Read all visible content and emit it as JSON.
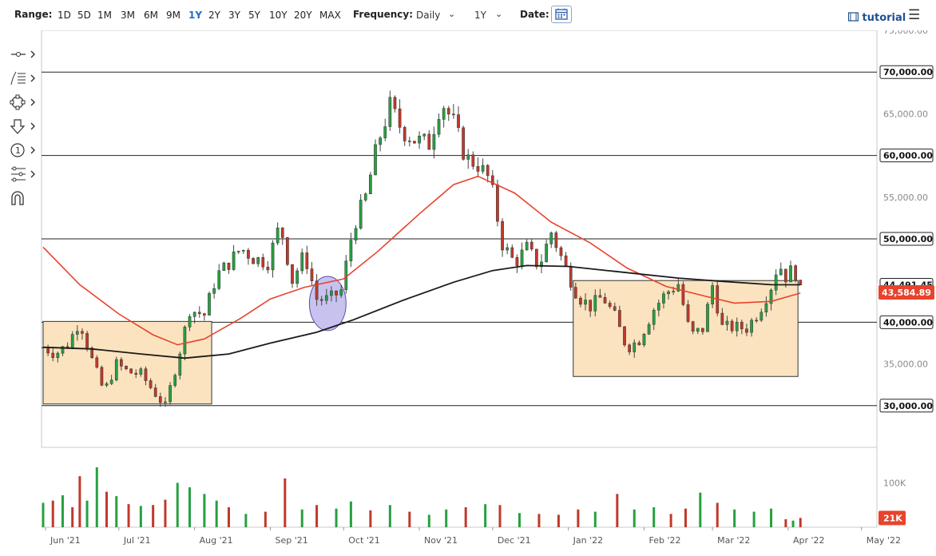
{
  "toolbar": {
    "range_label": "Range:",
    "ranges": [
      "1D",
      "5D",
      "1M",
      "3M",
      "6M",
      "9M",
      "1Y",
      "2Y",
      "3Y",
      "5Y",
      "10Y",
      "20Y",
      "MAX"
    ],
    "active_range": "1Y",
    "frequency_label": "Frequency:",
    "frequency_value": "Daily",
    "period_value": "1Y",
    "date_label": "Date:",
    "tutorial_label": "tutorial"
  },
  "icons": {
    "calendar": "calendar-icon",
    "tutorial": "film-icon",
    "menu": "hamburger-menu-icon",
    "tools": [
      "line-tool-icon",
      "fib-tool-icon",
      "shape-tool-icon",
      "arrow-tool-icon",
      "annotation-tool-icon",
      "pattern-tool-icon",
      "magnet-icon"
    ]
  },
  "colors": {
    "up_candle": "#26a041",
    "down_candle": "#c0392b",
    "ma_fast": "#e8432d",
    "ma_slow": "#1a1a1a",
    "box_fill": "#fbe3bf",
    "circle_fill": "#c8c2ee",
    "price_badge": "#e8432d",
    "volume_badge": "#e8432d"
  },
  "chart_data": {
    "type": "candlestick",
    "y_axis_ticks": [
      "75,000.00",
      "70,000.00",
      "65,000.00",
      "60,000.00",
      "55,000.00",
      "50,000.00",
      "44,491.45",
      "43,584.89",
      "40,000.00",
      "35,000.00",
      "30,000.00"
    ],
    "price_ylim": [
      25000,
      75000
    ],
    "x_axis_ticks": [
      "Jun '21",
      "Jul '21",
      "Aug '21",
      "Sep '21",
      "Oct '21",
      "Nov '21",
      "Dec '21",
      "Jan '22",
      "Feb '22",
      "Mar '22",
      "Apr '22",
      "May '22"
    ],
    "x_range": [
      "2021-05-31",
      "2022-05-06"
    ],
    "horizontal_levels": [
      {
        "value": 70000,
        "label": "70,000.00"
      },
      {
        "value": 60000,
        "label": "60,000.00"
      },
      {
        "value": 50000,
        "label": "50,000.00"
      },
      {
        "value": 40000,
        "label": "40,000.00"
      },
      {
        "value": 30000,
        "label": "30,000.00"
      }
    ],
    "current_price": {
      "value": 43584.89,
      "label": "43,584.89"
    },
    "ma_slow_last": {
      "value": 44491.45,
      "label": "44,491.45"
    },
    "range_boxes": [
      {
        "from": "2021-05-31",
        "to": "2021-08-08",
        "low": 30200,
        "high": 40100
      },
      {
        "from": "2022-01-03",
        "to": "2022-04-05",
        "low": 33500,
        "high": 45000
      }
    ],
    "highlight_circle": {
      "from": "2021-09-17",
      "to": "2021-10-02",
      "low": 39000,
      "high": 45500
    },
    "price_series": [
      {
        "date": "2021-05-31",
        "close": 37000
      },
      {
        "date": "2021-06-05",
        "close": 36200
      },
      {
        "date": "2021-06-10",
        "close": 37300
      },
      {
        "date": "2021-06-15",
        "close": 40200
      },
      {
        "date": "2021-06-20",
        "close": 35500
      },
      {
        "date": "2021-06-25",
        "close": 31600
      },
      {
        "date": "2021-06-30",
        "close": 35000
      },
      {
        "date": "2021-07-05",
        "close": 34000
      },
      {
        "date": "2021-07-10",
        "close": 33800
      },
      {
        "date": "2021-07-15",
        "close": 31800
      },
      {
        "date": "2021-07-20",
        "close": 29900
      },
      {
        "date": "2021-07-25",
        "close": 35400
      },
      {
        "date": "2021-07-30",
        "close": 41500
      },
      {
        "date": "2021-08-05",
        "close": 40900
      },
      {
        "date": "2021-08-10",
        "close": 45600
      },
      {
        "date": "2021-08-15",
        "close": 47100
      },
      {
        "date": "2021-08-20",
        "close": 48900
      },
      {
        "date": "2021-08-25",
        "close": 47700
      },
      {
        "date": "2021-08-31",
        "close": 47200
      },
      {
        "date": "2021-09-05",
        "close": 51800
      },
      {
        "date": "2021-09-10",
        "close": 45000
      },
      {
        "date": "2021-09-15",
        "close": 48200
      },
      {
        "date": "2021-09-20",
        "close": 42800
      },
      {
        "date": "2021-09-25",
        "close": 42700
      },
      {
        "date": "2021-09-30",
        "close": 43800
      },
      {
        "date": "2021-10-05",
        "close": 51500
      },
      {
        "date": "2021-10-10",
        "close": 55000
      },
      {
        "date": "2021-10-15",
        "close": 61500
      },
      {
        "date": "2021-10-20",
        "close": 65900
      },
      {
        "date": "2021-10-25",
        "close": 63000
      },
      {
        "date": "2021-10-30",
        "close": 61900
      },
      {
        "date": "2021-11-05",
        "close": 61400
      },
      {
        "date": "2021-11-10",
        "close": 66600
      },
      {
        "date": "2021-11-15",
        "close": 63900
      },
      {
        "date": "2021-11-20",
        "close": 59700
      },
      {
        "date": "2021-11-25",
        "close": 58900
      },
      {
        "date": "2021-11-30",
        "close": 57000
      },
      {
        "date": "2021-12-05",
        "close": 49400
      },
      {
        "date": "2021-12-10",
        "close": 47100
      },
      {
        "date": "2021-12-15",
        "close": 48900
      },
      {
        "date": "2021-12-20",
        "close": 46700
      },
      {
        "date": "2021-12-25",
        "close": 50800
      },
      {
        "date": "2021-12-30",
        "close": 47100
      },
      {
        "date": "2022-01-05",
        "close": 43100
      },
      {
        "date": "2022-01-10",
        "close": 41900
      },
      {
        "date": "2022-01-15",
        "close": 43100
      },
      {
        "date": "2022-01-20",
        "close": 40700
      },
      {
        "date": "2022-01-25",
        "close": 36900
      },
      {
        "date": "2022-01-30",
        "close": 37900
      },
      {
        "date": "2022-02-05",
        "close": 41600
      },
      {
        "date": "2022-02-10",
        "close": 43500
      },
      {
        "date": "2022-02-15",
        "close": 44600
      },
      {
        "date": "2022-02-20",
        "close": 38400
      },
      {
        "date": "2022-02-25",
        "close": 39200
      },
      {
        "date": "2022-03-01",
        "close": 44400
      },
      {
        "date": "2022-03-05",
        "close": 39400
      },
      {
        "date": "2022-03-10",
        "close": 39400
      },
      {
        "date": "2022-03-15",
        "close": 39300
      },
      {
        "date": "2022-03-20",
        "close": 41300
      },
      {
        "date": "2022-03-25",
        "close": 44300
      },
      {
        "date": "2022-03-28",
        "close": 47100
      },
      {
        "date": "2022-03-31",
        "close": 45500
      },
      {
        "date": "2022-04-03",
        "close": 46400
      },
      {
        "date": "2022-04-05",
        "close": 45500
      },
      {
        "date": "2022-04-06",
        "close": 43600
      }
    ],
    "ma_fast_series": [
      {
        "date": "2021-05-31",
        "value": 49000
      },
      {
        "date": "2021-06-15",
        "value": 44500
      },
      {
        "date": "2021-07-01",
        "value": 41000
      },
      {
        "date": "2021-07-15",
        "value": 38500
      },
      {
        "date": "2021-07-25",
        "value": 37300
      },
      {
        "date": "2021-08-05",
        "value": 38000
      },
      {
        "date": "2021-08-20",
        "value": 40500
      },
      {
        "date": "2021-09-01",
        "value": 42800
      },
      {
        "date": "2021-09-15",
        "value": 44200
      },
      {
        "date": "2021-10-01",
        "value": 45200
      },
      {
        "date": "2021-10-15",
        "value": 48500
      },
      {
        "date": "2021-11-01",
        "value": 53000
      },
      {
        "date": "2021-11-15",
        "value": 56500
      },
      {
        "date": "2021-11-25",
        "value": 57500
      },
      {
        "date": "2021-12-10",
        "value": 55500
      },
      {
        "date": "2021-12-25",
        "value": 52000
      },
      {
        "date": "2022-01-10",
        "value": 49500
      },
      {
        "date": "2022-01-25",
        "value": 46500
      },
      {
        "date": "2022-02-10",
        "value": 44300
      },
      {
        "date": "2022-02-25",
        "value": 43200
      },
      {
        "date": "2022-03-10",
        "value": 42300
      },
      {
        "date": "2022-03-25",
        "value": 42500
      },
      {
        "date": "2022-04-06",
        "value": 43500
      }
    ],
    "ma_slow_series": [
      {
        "date": "2021-05-31",
        "value": 37000
      },
      {
        "date": "2021-06-20",
        "value": 36800
      },
      {
        "date": "2021-07-10",
        "value": 36200
      },
      {
        "date": "2021-07-28",
        "value": 35700
      },
      {
        "date": "2021-08-15",
        "value": 36200
      },
      {
        "date": "2021-09-01",
        "value": 37500
      },
      {
        "date": "2021-09-20",
        "value": 38800
      },
      {
        "date": "2021-10-05",
        "value": 40300
      },
      {
        "date": "2021-10-25",
        "value": 42600
      },
      {
        "date": "2021-11-15",
        "value": 44800
      },
      {
        "date": "2021-12-01",
        "value": 46200
      },
      {
        "date": "2021-12-15",
        "value": 46800
      },
      {
        "date": "2022-01-01",
        "value": 46700
      },
      {
        "date": "2022-01-20",
        "value": 46100
      },
      {
        "date": "2022-02-15",
        "value": 45300
      },
      {
        "date": "2022-03-05",
        "value": 44900
      },
      {
        "date": "2022-03-25",
        "value": 44500
      },
      {
        "date": "2022-04-06",
        "value": 44491.45
      }
    ],
    "volume": {
      "axis_ticks": [
        "100K"
      ],
      "last_label": "21K",
      "ylim": [
        0,
        180000
      ],
      "bars": [
        {
          "date": "2021-05-31",
          "value": 55000,
          "dir": "up"
        },
        {
          "date": "2021-06-04",
          "value": 60000,
          "dir": "down"
        },
        {
          "date": "2021-06-08",
          "value": 72000,
          "dir": "up"
        },
        {
          "date": "2021-06-12",
          "value": 45000,
          "dir": "down"
        },
        {
          "date": "2021-06-15",
          "value": 115000,
          "dir": "down"
        },
        {
          "date": "2021-06-18",
          "value": 60000,
          "dir": "up"
        },
        {
          "date": "2021-06-22",
          "value": 135000,
          "dir": "up"
        },
        {
          "date": "2021-06-26",
          "value": 80000,
          "dir": "down"
        },
        {
          "date": "2021-06-30",
          "value": 70000,
          "dir": "up"
        },
        {
          "date": "2021-07-05",
          "value": 52000,
          "dir": "down"
        },
        {
          "date": "2021-07-10",
          "value": 48000,
          "dir": "up"
        },
        {
          "date": "2021-07-15",
          "value": 50000,
          "dir": "down"
        },
        {
          "date": "2021-07-20",
          "value": 62000,
          "dir": "down"
        },
        {
          "date": "2021-07-25",
          "value": 100000,
          "dir": "up"
        },
        {
          "date": "2021-07-30",
          "value": 90000,
          "dir": "up"
        },
        {
          "date": "2021-08-05",
          "value": 75000,
          "dir": "up"
        },
        {
          "date": "2021-08-10",
          "value": 60000,
          "dir": "up"
        },
        {
          "date": "2021-08-15",
          "value": 45000,
          "dir": "down"
        },
        {
          "date": "2021-08-22",
          "value": 30000,
          "dir": "up"
        },
        {
          "date": "2021-08-30",
          "value": 35000,
          "dir": "down"
        },
        {
          "date": "2021-09-07",
          "value": 110000,
          "dir": "down"
        },
        {
          "date": "2021-09-14",
          "value": 40000,
          "dir": "up"
        },
        {
          "date": "2021-09-20",
          "value": 50000,
          "dir": "down"
        },
        {
          "date": "2021-09-28",
          "value": 42000,
          "dir": "up"
        },
        {
          "date": "2021-10-04",
          "value": 58000,
          "dir": "up"
        },
        {
          "date": "2021-10-12",
          "value": 38000,
          "dir": "down"
        },
        {
          "date": "2021-10-20",
          "value": 50000,
          "dir": "up"
        },
        {
          "date": "2021-10-28",
          "value": 35000,
          "dir": "down"
        },
        {
          "date": "2021-11-05",
          "value": 28000,
          "dir": "up"
        },
        {
          "date": "2021-11-12",
          "value": 40000,
          "dir": "up"
        },
        {
          "date": "2021-11-20",
          "value": 45000,
          "dir": "down"
        },
        {
          "date": "2021-11-28",
          "value": 52000,
          "dir": "up"
        },
        {
          "date": "2021-12-04",
          "value": 50000,
          "dir": "down"
        },
        {
          "date": "2021-12-12",
          "value": 32000,
          "dir": "up"
        },
        {
          "date": "2021-12-20",
          "value": 30000,
          "dir": "down"
        },
        {
          "date": "2021-12-28",
          "value": 28000,
          "dir": "down"
        },
        {
          "date": "2022-01-05",
          "value": 40000,
          "dir": "down"
        },
        {
          "date": "2022-01-12",
          "value": 35000,
          "dir": "up"
        },
        {
          "date": "2022-01-21",
          "value": 75000,
          "dir": "down"
        },
        {
          "date": "2022-01-28",
          "value": 40000,
          "dir": "up"
        },
        {
          "date": "2022-02-05",
          "value": 45000,
          "dir": "up"
        },
        {
          "date": "2022-02-12",
          "value": 30000,
          "dir": "down"
        },
        {
          "date": "2022-02-18",
          "value": 42000,
          "dir": "down"
        },
        {
          "date": "2022-02-24",
          "value": 78000,
          "dir": "up"
        },
        {
          "date": "2022-03-03",
          "value": 55000,
          "dir": "down"
        },
        {
          "date": "2022-03-10",
          "value": 40000,
          "dir": "up"
        },
        {
          "date": "2022-03-18",
          "value": 35000,
          "dir": "up"
        },
        {
          "date": "2022-03-25",
          "value": 42000,
          "dir": "up"
        },
        {
          "date": "2022-03-31",
          "value": 18000,
          "dir": "down"
        },
        {
          "date": "2022-04-03",
          "value": 15000,
          "dir": "up"
        },
        {
          "date": "2022-04-06",
          "value": 21000,
          "dir": "down"
        }
      ]
    }
  }
}
